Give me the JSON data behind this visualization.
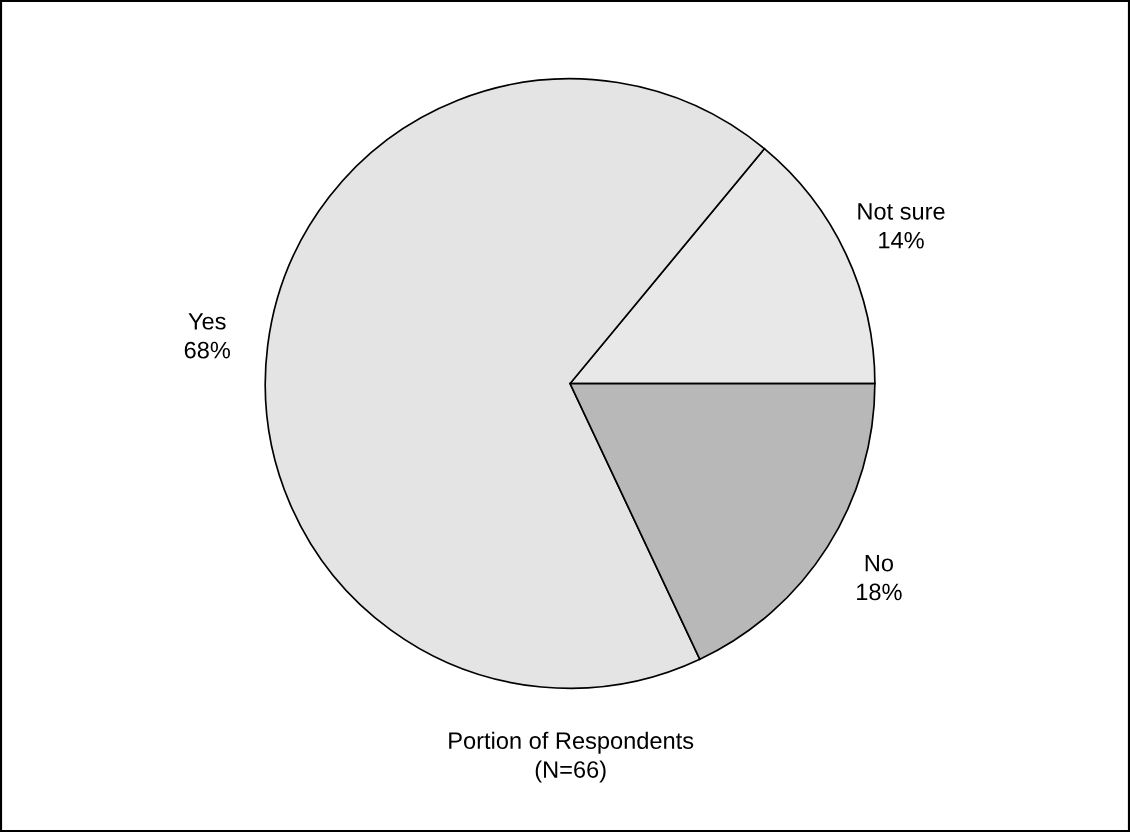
{
  "chart_data": {
    "type": "pie",
    "title": "Portion of Respondents",
    "subtitle": "(N=66)",
    "categories": [
      "Not sure",
      "Yes",
      "No"
    ],
    "values": [
      14,
      68,
      18
    ],
    "value_labels": [
      "14%",
      "68%",
      "18%"
    ],
    "colors": [
      "#e8e8e8",
      "#e4e4e4",
      "#b8b8b8"
    ]
  }
}
